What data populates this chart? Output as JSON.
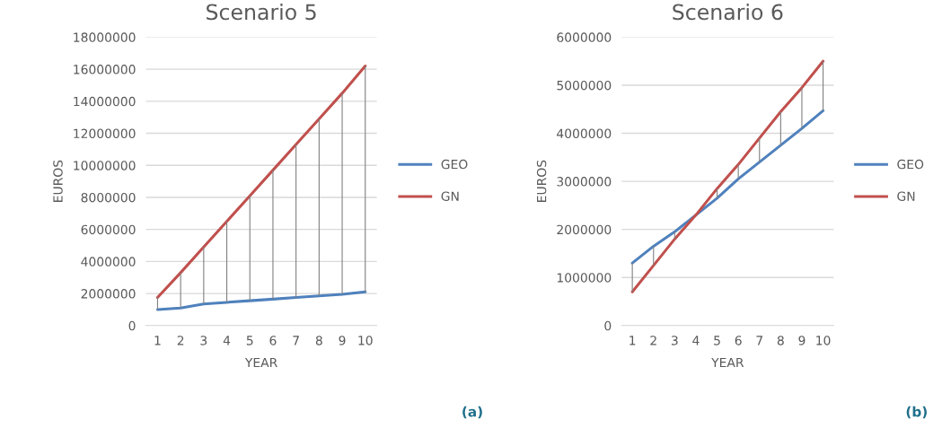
{
  "chart_data": [
    {
      "type": "line",
      "title": "Scenario 5",
      "xlabel": "YEAR",
      "ylabel": "EUROS",
      "categories": [
        "1",
        "2",
        "3",
        "4",
        "5",
        "6",
        "7",
        "8",
        "9",
        "10"
      ],
      "series": [
        {
          "name": "GEO",
          "color": "#4f81bd",
          "values": [
            1000000,
            1100000,
            1350000,
            1450000,
            1550000,
            1650000,
            1750000,
            1850000,
            1950000,
            2100000
          ]
        },
        {
          "name": "GN",
          "color": "#c0504d",
          "values": [
            1750000,
            3300000,
            4900000,
            6500000,
            8100000,
            9700000,
            11300000,
            12900000,
            14500000,
            16200000
          ],
          "errors": [
            [
              1000000,
              1750000
            ],
            [
              1100000,
              3300000
            ],
            [
              1350000,
              4900000
            ],
            [
              1450000,
              6500000
            ],
            [
              1550000,
              8100000
            ],
            [
              1650000,
              9700000
            ],
            [
              1750000,
              11300000
            ],
            [
              1850000,
              12900000
            ],
            [
              1950000,
              14500000
            ],
            [
              2100000,
              16200000
            ]
          ]
        }
      ],
      "ylim": [
        0,
        18000000
      ],
      "yticks": [
        0,
        2000000,
        4000000,
        6000000,
        8000000,
        10000000,
        12000000,
        14000000,
        16000000,
        18000000
      ],
      "grid": "y",
      "legend": "right",
      "annotations": [
        "(a)"
      ]
    },
    {
      "type": "line",
      "title": "Scenario 6",
      "xlabel": "YEAR",
      "ylabel": "EUROS",
      "categories": [
        "1",
        "2",
        "3",
        "4",
        "5",
        "6",
        "7",
        "8",
        "9",
        "10"
      ],
      "series": [
        {
          "name": "GEO",
          "color": "#4f81bd",
          "values": [
            1300000,
            1650000,
            1950000,
            2300000,
            2650000,
            3050000,
            3400000,
            3750000,
            4100000,
            4470000
          ]
        },
        {
          "name": "GN",
          "color": "#c0504d",
          "values": [
            700000,
            1250000,
            1800000,
            2300000,
            2850000,
            3350000,
            3900000,
            4450000,
            4950000,
            5500000
          ],
          "errors": [
            [
              700000,
              1300000
            ],
            [
              1250000,
              1650000
            ],
            [
              1800000,
              1950000
            ],
            null,
            [
              2650000,
              2850000
            ],
            [
              3050000,
              3350000
            ],
            [
              3400000,
              3900000
            ],
            [
              3750000,
              4450000
            ],
            [
              4100000,
              4950000
            ],
            [
              4470000,
              5500000
            ]
          ]
        }
      ],
      "ylim": [
        0,
        6000000
      ],
      "yticks": [
        0,
        1000000,
        2000000,
        3000000,
        4000000,
        5000000,
        6000000
      ],
      "grid": "y",
      "legend": "right",
      "annotations": [
        "(b)"
      ]
    }
  ]
}
